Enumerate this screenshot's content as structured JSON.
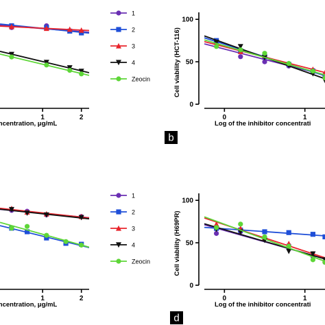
{
  "colors": {
    "1": "#6a2fb3",
    "2": "#1f4fd8",
    "3": "#e8242c",
    "4": "#111111",
    "Zeocin": "#5ed638",
    "axis": "#000000",
    "panel_letter_bg": "#000000"
  },
  "legend_top": {
    "entries": [
      "1",
      "2",
      "3",
      "4",
      "Zeocin"
    ]
  },
  "legend_bottom": {
    "entries": [
      "1",
      "2",
      "3",
      "4",
      "Zeocin"
    ]
  },
  "chart_data": [
    {
      "id": "a",
      "type": "line",
      "xlabel": "oncentration, μg/mL",
      "ylabel": "",
      "x_ticks": [
        "1",
        "2"
      ],
      "xlim": [
        -0.1,
        2.2
      ],
      "ylim": [
        0,
        100
      ],
      "series": [
        {
          "name": "1",
          "marker": "circle",
          "x": [
            0.2,
            1.1,
            1.7,
            2.0
          ],
          "y": [
            86,
            88,
            82,
            80
          ]
        },
        {
          "name": "2",
          "marker": "square",
          "x": [
            0.2,
            1.1,
            1.7,
            2.0
          ],
          "y": [
            88,
            86,
            82,
            80
          ]
        },
        {
          "name": "3",
          "marker": "triangle-up",
          "x": [
            0.2,
            1.1,
            1.7,
            2.0
          ],
          "y": [
            87,
            85,
            84,
            83
          ]
        },
        {
          "name": "4",
          "marker": "triangle-down",
          "x": [
            0.2,
            1.1,
            1.7,
            2.0
          ],
          "y": [
            56,
            47,
            41,
            37
          ]
        },
        {
          "name": "Zeocin",
          "marker": "circle",
          "x": [
            0.2,
            1.1,
            1.7,
            2.0
          ],
          "y": [
            53,
            44,
            38,
            34
          ]
        }
      ]
    },
    {
      "id": "b",
      "type": "line",
      "xlabel": "Log of the inhibitor concentrati",
      "ylabel": "Cell viability (HCT-116)",
      "x_ticks": [
        "0",
        "1"
      ],
      "y_ticks": [
        "0",
        "50",
        "100"
      ],
      "xlim": [
        -0.25,
        1.25
      ],
      "ylim": [
        0,
        105
      ],
      "series": [
        {
          "name": "1",
          "marker": "circle",
          "x": [
            -0.1,
            0.2,
            0.5,
            0.8,
            1.1,
            1.25
          ],
          "y": [
            72,
            56,
            50,
            45,
            40,
            35
          ]
        },
        {
          "name": "2",
          "marker": "square",
          "x": [
            -0.1,
            0.2,
            0.5,
            0.8,
            1.1,
            1.25
          ],
          "y": [
            75,
            63,
            56,
            47,
            39,
            33
          ]
        },
        {
          "name": "3",
          "marker": "triangle-up",
          "x": [
            -0.1,
            0.2,
            0.5,
            0.8,
            1.1,
            1.25
          ],
          "y": [
            70,
            62,
            57,
            48,
            41,
            37
          ]
        },
        {
          "name": "4",
          "marker": "triangle-down",
          "x": [
            -0.1,
            0.2,
            0.5,
            0.8,
            1.1,
            1.25
          ],
          "y": [
            73,
            68,
            55,
            46,
            36,
            28
          ]
        },
        {
          "name": "Zeocin",
          "marker": "circle",
          "x": [
            -0.1,
            0.2,
            0.5,
            0.8,
            1.1,
            1.25
          ],
          "y": [
            68,
            64,
            60,
            48,
            39,
            31
          ]
        }
      ]
    },
    {
      "id": "c",
      "type": "line",
      "xlabel": "oncentration, μg/mL",
      "ylabel": "",
      "x_ticks": [
        "1",
        "2"
      ],
      "xlim": [
        -0.1,
        2.2
      ],
      "ylim": [
        0,
        100
      ],
      "series": [
        {
          "name": "1",
          "marker": "circle",
          "x": [
            0.2,
            0.6,
            1.1,
            2.0
          ],
          "y": [
            84,
            83,
            79,
            77
          ]
        },
        {
          "name": "2",
          "marker": "square",
          "x": [
            0.2,
            0.6,
            1.1,
            1.6,
            2.0
          ],
          "y": [
            64,
            60,
            53,
            47,
            46
          ]
        },
        {
          "name": "3",
          "marker": "triangle-up",
          "x": [
            0.2,
            0.6,
            1.1,
            2.0
          ],
          "y": [
            86,
            82,
            80,
            77
          ]
        },
        {
          "name": "4",
          "marker": "triangle-down",
          "x": [
            0.2,
            0.6,
            1.1,
            2.0
          ],
          "y": [
            85,
            81,
            79,
            76
          ]
        },
        {
          "name": "Zeocin",
          "marker": "circle",
          "x": [
            0.2,
            0.6,
            1.1,
            1.6,
            2.0
          ],
          "y": [
            64,
            66,
            56,
            49,
            45
          ]
        }
      ]
    },
    {
      "id": "d",
      "type": "line",
      "xlabel": "Log of the inhibitor concentrati",
      "ylabel": "Cell viability (H69PR)",
      "x_ticks": [
        "0",
        "1"
      ],
      "y_ticks": [
        "0",
        "50",
        "100"
      ],
      "xlim": [
        -0.25,
        1.25
      ],
      "ylim": [
        0,
        105
      ],
      "series": [
        {
          "name": "1",
          "marker": "circle",
          "x": [
            -0.1,
            0.2,
            0.5,
            0.8,
            1.1,
            1.25
          ],
          "y": [
            61,
            63,
            55,
            47,
            34,
            27
          ]
        },
        {
          "name": "2",
          "marker": "square",
          "x": [
            -0.1,
            0.2,
            0.5,
            0.8,
            1.1,
            1.25
          ],
          "y": [
            67,
            65,
            63,
            62,
            60,
            57
          ]
        },
        {
          "name": "3",
          "marker": "triangle-up",
          "x": [
            -0.1,
            0.2,
            0.5,
            0.8,
            1.1,
            1.25
          ],
          "y": [
            72,
            67,
            56,
            49,
            37,
            30
          ]
        },
        {
          "name": "4",
          "marker": "triangle-down",
          "x": [
            -0.1,
            0.2,
            0.5,
            0.8,
            1.1,
            1.25
          ],
          "y": [
            66,
            63,
            53,
            40,
            37,
            30
          ]
        },
        {
          "name": "Zeocin",
          "marker": "circle",
          "x": [
            -0.1,
            0.2,
            0.5,
            0.8,
            1.1,
            1.25
          ],
          "y": [
            68,
            72,
            57,
            46,
            30,
            27
          ]
        }
      ]
    }
  ],
  "panel_letters": {
    "b": "b",
    "d": "d"
  }
}
